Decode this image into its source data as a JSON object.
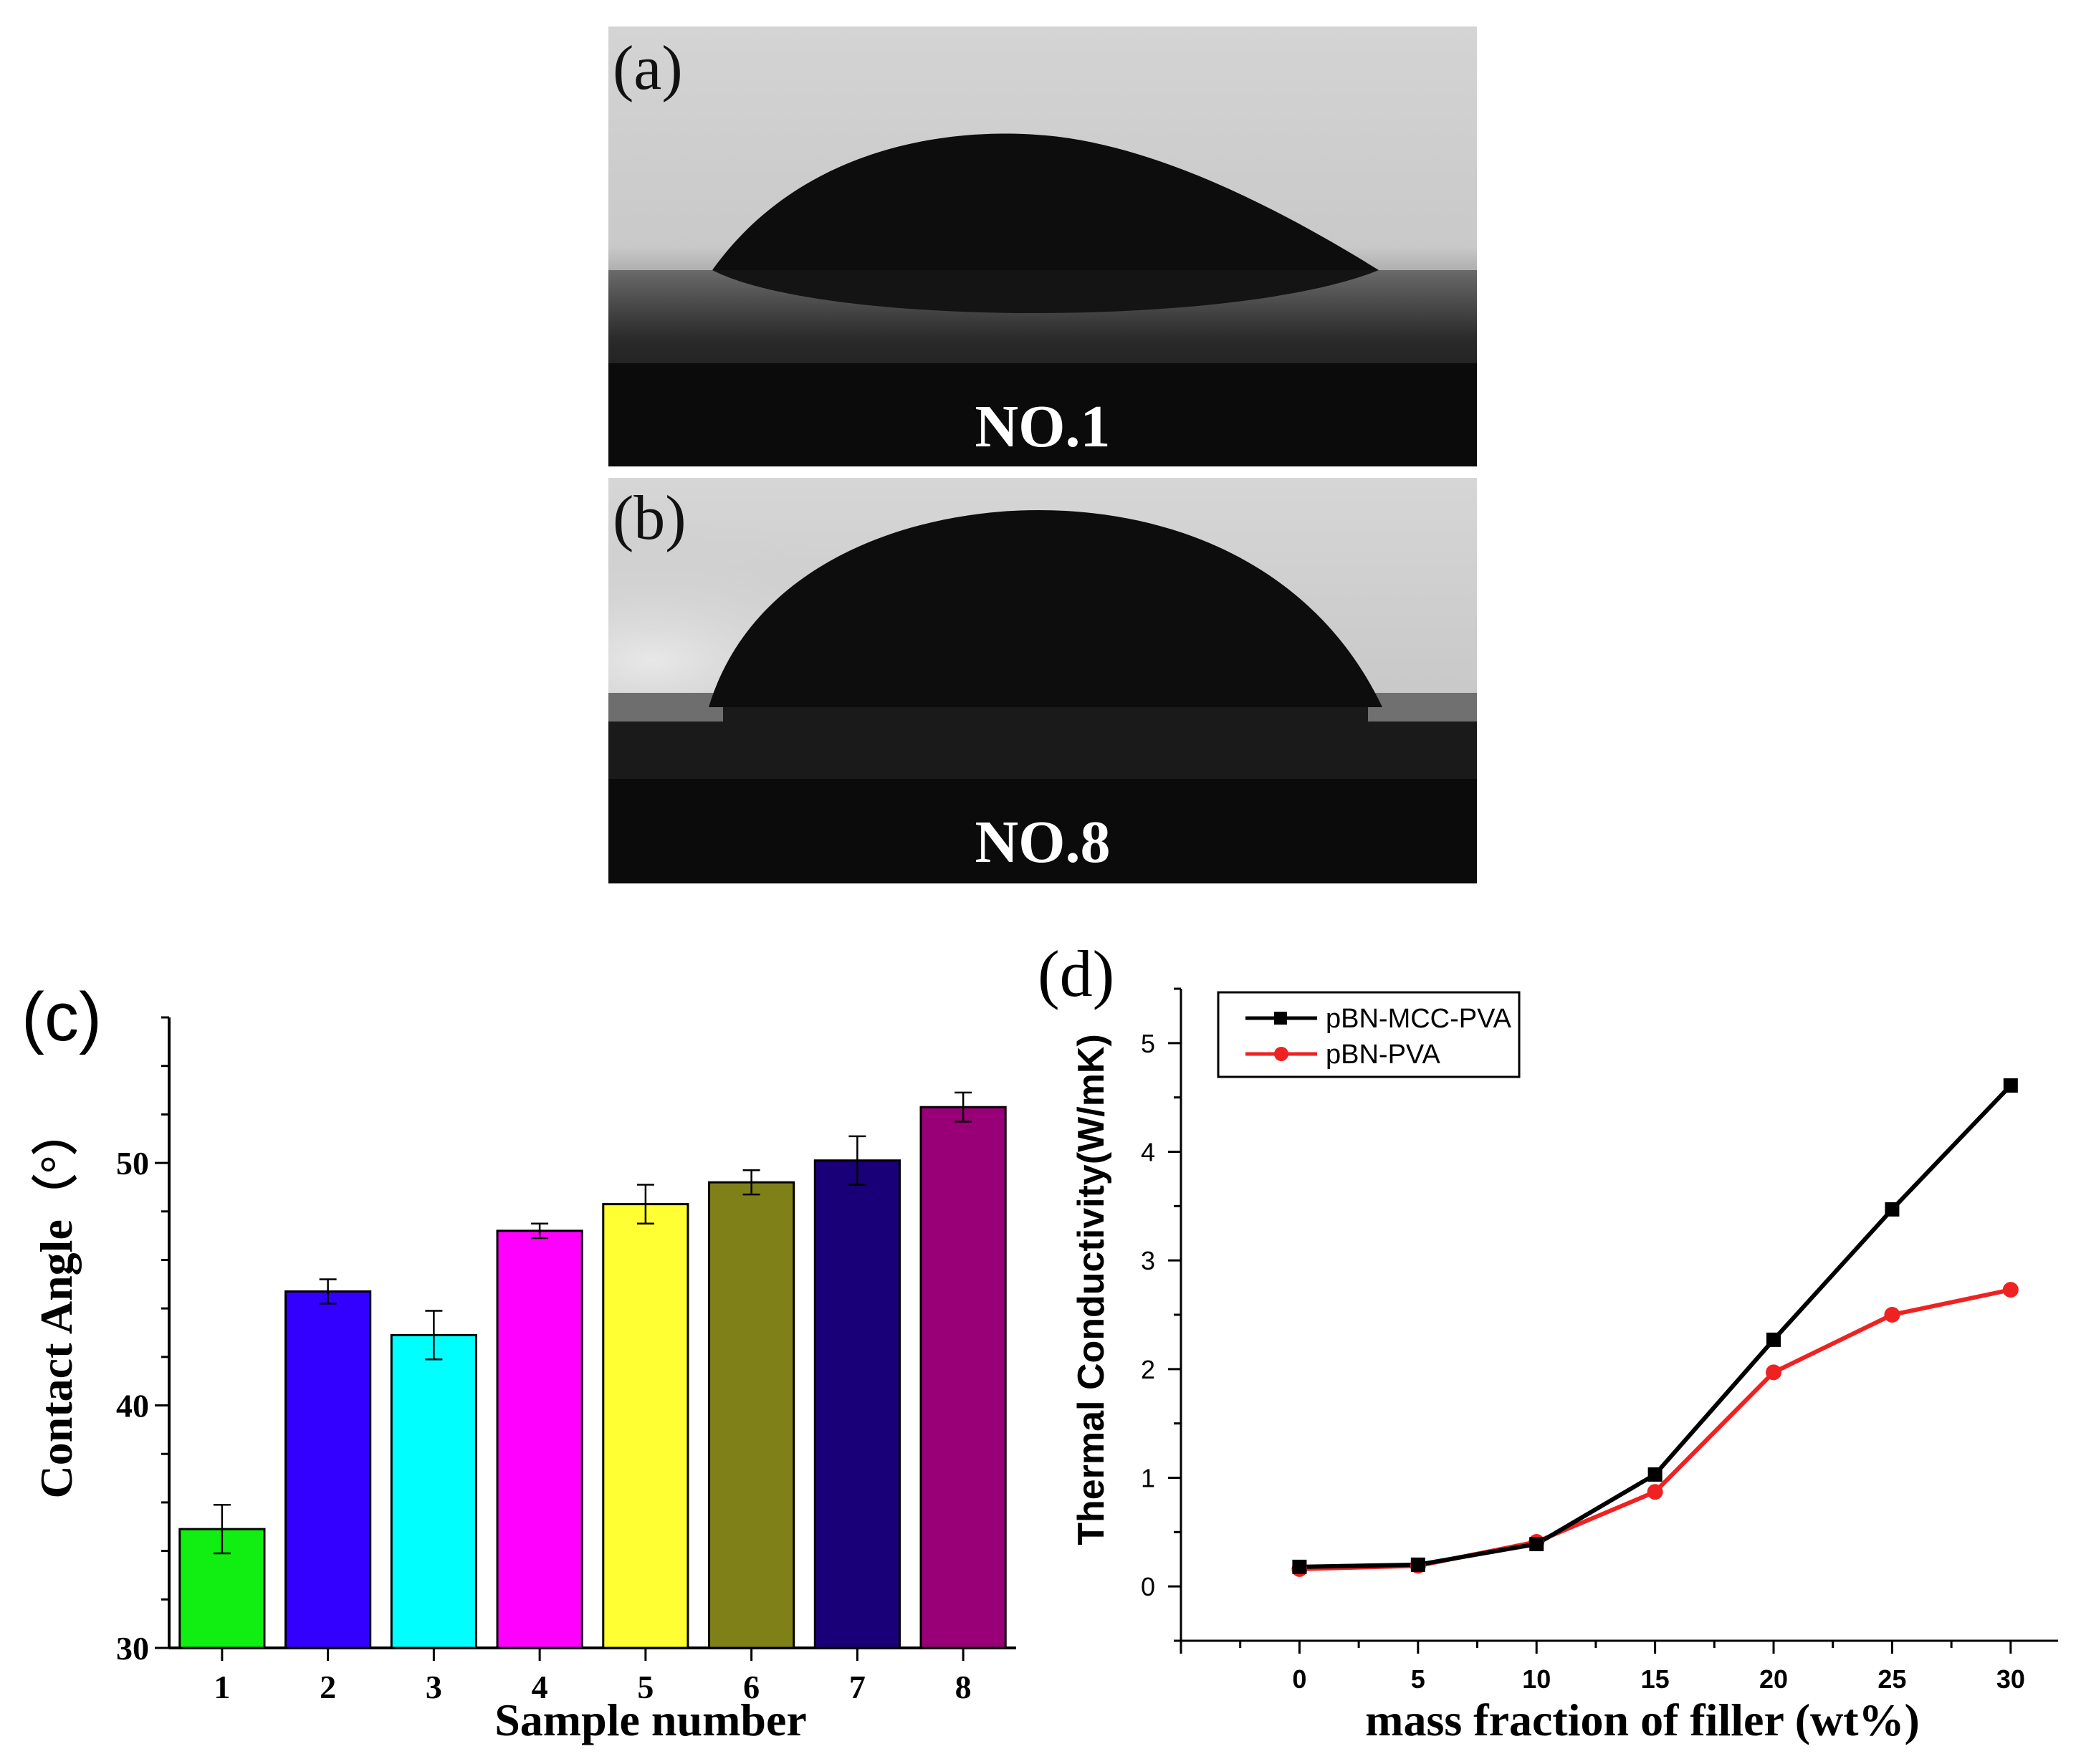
{
  "photos": [
    {
      "label": "(a)",
      "caption": "NO.1"
    },
    {
      "label": "(b)",
      "caption": "NO.8"
    }
  ],
  "chart_data": [
    {
      "type": "bar",
      "panel_label": "(c)",
      "title": "",
      "xlabel": "Sample number",
      "ylabel": "Contact Angle（°）",
      "categories": [
        "1",
        "2",
        "3",
        "4",
        "5",
        "6",
        "7",
        "8"
      ],
      "values": [
        34.9,
        44.7,
        42.9,
        47.2,
        48.3,
        49.2,
        50.1,
        52.3
      ],
      "errors": [
        1.0,
        0.5,
        1.0,
        0.3,
        0.8,
        0.5,
        1.0,
        0.6
      ],
      "colors": [
        "#11ee11",
        "#3300ff",
        "#00ffff",
        "#ff00ff",
        "#ffff33",
        "#808018",
        "#1a0078",
        "#990077"
      ],
      "ylim": [
        30,
        56
      ],
      "yticks": [
        30,
        40,
        50
      ],
      "grid": false
    },
    {
      "type": "line",
      "panel_label": "(d)",
      "title": "",
      "xlabel": "mass fraction of filler (wt%)",
      "ylabel": "Thermal Conductivity(W/mK)",
      "x": [
        0,
        5,
        10,
        15,
        20,
        25,
        30
      ],
      "xlim": [
        -5,
        32
      ],
      "ylim": [
        -0.5,
        5.5
      ],
      "xticks": [
        0,
        5,
        10,
        15,
        20,
        25,
        30
      ],
      "yticks": [
        0,
        1,
        2,
        3,
        4,
        5
      ],
      "legend": "top-left",
      "grid": false,
      "series": [
        {
          "name": "pBN-MCC-PVA",
          "marker": "square",
          "color": "#000000",
          "values": [
            0.18,
            0.2,
            0.39,
            1.03,
            2.27,
            3.47,
            4.61
          ]
        },
        {
          "name": "pBN-PVA",
          "marker": "circle",
          "color": "#ee2222",
          "values": [
            0.16,
            0.19,
            0.41,
            0.87,
            1.97,
            2.5,
            2.73
          ]
        }
      ]
    }
  ]
}
